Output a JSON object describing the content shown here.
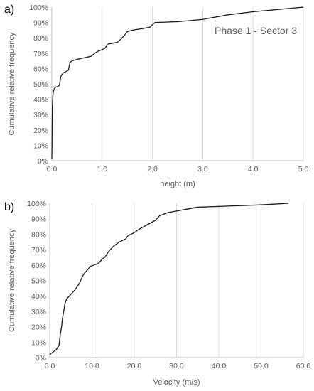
{
  "chart_data": [
    {
      "panel_label": "a)",
      "type": "line",
      "annotation": "Phase 1 - Sector 3",
      "xlabel": "height (m)",
      "ylabel": "Cumulative relative frequency",
      "xlim": [
        0,
        5
      ],
      "ylim": [
        0,
        100
      ],
      "x_ticks": [
        "0.0",
        "1.0",
        "2.0",
        "3.0",
        "4.0",
        "5.0"
      ],
      "y_ticks": [
        "0%",
        "10%",
        "20%",
        "30%",
        "40%",
        "50%",
        "60%",
        "70%",
        "80%",
        "90%",
        "100%"
      ],
      "grid": "vertical",
      "series": [
        {
          "x": [
            0.0,
            0.005,
            0.01,
            0.02,
            0.03,
            0.05,
            0.08,
            0.1,
            0.15,
            0.18,
            0.22,
            0.28,
            0.33,
            0.36,
            0.4,
            0.5,
            0.65,
            0.78,
            0.9,
            1.05,
            1.12,
            1.3,
            1.4,
            1.5,
            1.6,
            1.8,
            1.95,
            2.05,
            2.5,
            3.0,
            3.5,
            4.0,
            4.5,
            5.0
          ],
          "y": [
            1,
            20,
            35,
            42,
            45,
            47,
            48,
            48,
            49,
            55,
            57,
            58,
            59,
            64,
            65,
            66,
            67,
            68,
            71,
            73,
            76,
            77,
            80,
            84,
            85,
            86,
            87,
            90,
            90.5,
            92,
            95,
            97,
            98.5,
            100
          ]
        }
      ]
    },
    {
      "panel_label": "b)",
      "type": "line",
      "xlabel": "Velocity (m/s)",
      "ylabel": "Cumulative relative frequency",
      "xlim": [
        0,
        60
      ],
      "ylim": [
        0,
        100
      ],
      "x_ticks": [
        "0.0",
        "10.0",
        "20.0",
        "30.0",
        "40.0",
        "50.0",
        "60.0"
      ],
      "y_ticks": [
        "0%",
        "10%",
        "20%",
        "30%",
        "40%",
        "50%",
        "60%",
        "70%",
        "80%",
        "90%",
        "100%"
      ],
      "grid": "vertical",
      "series": [
        {
          "x": [
            0.0,
            1.5,
            2.2,
            2.5,
            2.8,
            3.0,
            3.3,
            3.6,
            4.0,
            5.0,
            6.0,
            7.0,
            7.8,
            8.3,
            9.0,
            9.5,
            10.5,
            11.5,
            12.5,
            13.0,
            14.0,
            15.0,
            16.5,
            18.0,
            18.5,
            20.0,
            21.0,
            23.0,
            25.0,
            26.0,
            28.0,
            30.0,
            32.0,
            35.0,
            40.0,
            50.0,
            56.5
          ],
          "y": [
            2,
            5,
            8,
            15,
            20,
            25,
            30,
            35,
            38,
            41,
            44,
            48,
            53,
            55,
            57,
            59,
            60,
            61,
            64,
            65,
            69,
            72,
            75,
            77,
            79,
            81,
            83,
            86,
            89,
            92,
            94,
            95,
            96,
            97.5,
            98,
            99,
            100
          ]
        }
      ]
    }
  ]
}
